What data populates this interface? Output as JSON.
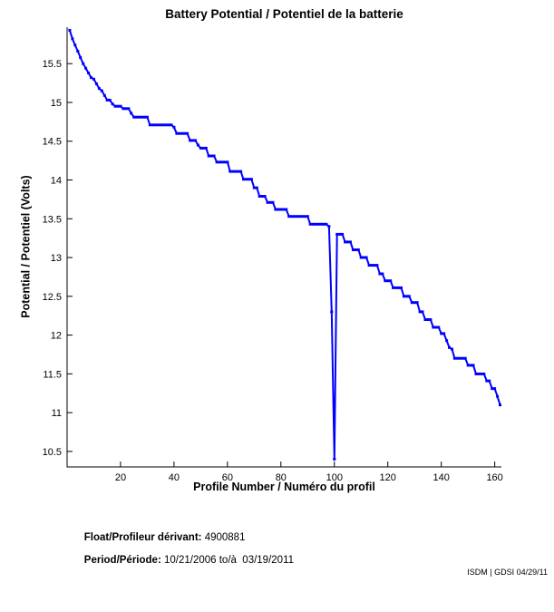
{
  "chart_data": {
    "type": "line",
    "title": "Battery Potential / Potentiel de la batterie",
    "xlabel": "Profile Number / Numéro du profil",
    "ylabel": "Potential / Potentiel (Volts)",
    "x_ticks": [
      20,
      40,
      60,
      80,
      100,
      120,
      140,
      160
    ],
    "y_ticks": [
      15.5,
      15,
      14.5,
      14,
      13.5,
      13,
      12.5,
      12,
      11.5,
      11,
      10.5
    ],
    "xlim": [
      0,
      162.5
    ],
    "ylim": [
      10.3,
      15.97
    ],
    "grid": false,
    "legend": "none",
    "line_color": "#0000ff",
    "x_start": 1,
    "values": [
      15.93,
      15.82,
      15.74,
      15.66,
      15.58,
      15.5,
      15.44,
      15.38,
      15.32,
      15.3,
      15.24,
      15.18,
      15.15,
      15.09,
      15.03,
      15.03,
      14.98,
      14.95,
      14.95,
      14.95,
      14.92,
      14.92,
      14.92,
      14.86,
      14.81,
      14.81,
      14.81,
      14.81,
      14.81,
      14.81,
      14.71,
      14.71,
      14.71,
      14.71,
      14.71,
      14.71,
      14.71,
      14.71,
      14.71,
      14.68,
      14.6,
      14.6,
      14.6,
      14.6,
      14.6,
      14.51,
      14.51,
      14.51,
      14.45,
      14.41,
      14.41,
      14.41,
      14.31,
      14.31,
      14.31,
      14.23,
      14.23,
      14.23,
      14.23,
      14.23,
      14.11,
      14.11,
      14.11,
      14.11,
      14.11,
      14.01,
      14.01,
      14.01,
      14.01,
      13.9,
      13.9,
      13.79,
      13.79,
      13.79,
      13.71,
      13.71,
      13.71,
      13.62,
      13.62,
      13.62,
      13.62,
      13.62,
      13.53,
      13.53,
      13.53,
      13.53,
      13.53,
      13.53,
      13.53,
      13.53,
      13.43,
      13.43,
      13.43,
      13.43,
      13.43,
      13.43,
      13.43,
      13.4,
      12.3,
      10.4,
      13.3,
      13.3,
      13.3,
      13.2,
      13.2,
      13.2,
      13.1,
      13.1,
      13.1,
      13.0,
      13.0,
      13.0,
      12.9,
      12.9,
      12.9,
      12.9,
      12.79,
      12.79,
      12.7,
      12.7,
      12.7,
      12.61,
      12.61,
      12.61,
      12.61,
      12.5,
      12.5,
      12.5,
      12.42,
      12.42,
      12.42,
      12.3,
      12.3,
      12.2,
      12.2,
      12.2,
      12.1,
      12.1,
      12.1,
      12.02,
      12.02,
      11.93,
      11.84,
      11.82,
      11.7,
      11.7,
      11.7,
      11.7,
      11.7,
      11.61,
      11.61,
      11.61,
      11.5,
      11.5,
      11.5,
      11.5,
      11.41,
      11.41,
      11.31,
      11.31,
      11.21,
      11.1
    ]
  },
  "annotations": {
    "float_label": "Float/Profileur dérivant:",
    "float_value": " 4900881",
    "period_label": "Period/Période:",
    "period_value": " 10/21/2006 to/à  03/19/2011",
    "credit": "ISDM | GDSI 04/29/11"
  }
}
